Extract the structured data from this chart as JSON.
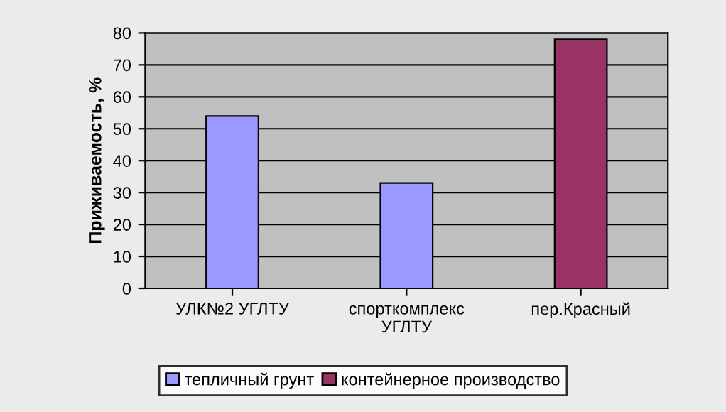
{
  "chart_data": {
    "type": "bar",
    "ylabel": "Приживаемость, %",
    "categories": [
      "УЛК№2 УГЛТУ",
      "спорткомплекс\nУГЛТУ",
      "пер.Красный"
    ],
    "series": [
      {
        "name": "тепличный грунт",
        "color": "#9999ff",
        "values": [
          54,
          33,
          null
        ]
      },
      {
        "name": "контейнерное производство",
        "color": "#993366",
        "values": [
          null,
          null,
          78
        ]
      }
    ],
    "ylim": [
      0,
      80
    ],
    "yticks": [
      0,
      10,
      20,
      30,
      40,
      50,
      60,
      70,
      80
    ],
    "grid": "y",
    "legend": "bottom"
  }
}
